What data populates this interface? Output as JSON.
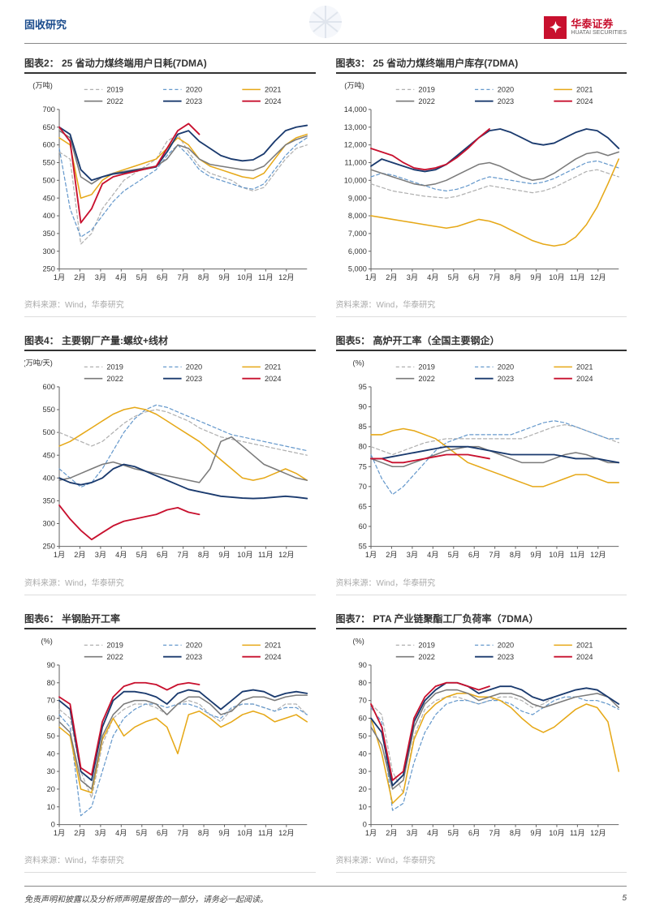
{
  "header": {
    "section": "固收研究",
    "logoCn": "华泰证券",
    "logoEn": "HUATAI SECURITIES"
  },
  "footer": {
    "disclaimer": "免责声明和披露以及分析师声明是报告的一部分，请务必一起阅读。",
    "page": "5"
  },
  "common": {
    "months": [
      "1月",
      "2月",
      "3月",
      "4月",
      "5月",
      "6月",
      "7月",
      "8月",
      "9月",
      "10月",
      "11月",
      "12月"
    ],
    "legend": [
      "2019",
      "2020",
      "2021",
      "2022",
      "2023",
      "2024"
    ],
    "colors": {
      "2019": "#b0b0b0",
      "2020": "#6699cc",
      "2021": "#e6a817",
      "2022": "#7a7a7a",
      "2023": "#1a3a6e",
      "2024": "#c8102e"
    },
    "dash": {
      "2019": "4,3",
      "2020": "4,3",
      "2021": "0",
      "2022": "0",
      "2023": "0",
      "2024": "0"
    },
    "lineWidth": {
      "2019": 1.2,
      "2020": 1.2,
      "2021": 1.5,
      "2022": 1.5,
      "2023": 1.8,
      "2024": 1.8
    },
    "source": "资料来源：Wind，华泰研究",
    "bgColor": "#ffffff",
    "axisColor": "#666",
    "tickFontSize": 9,
    "titleFontSize": 12
  },
  "charts": [
    {
      "id": "c2",
      "title": "图表2：  25 省动力煤终端用户日耗(7DMA)",
      "ylabel": "(万吨)",
      "ymin": 250,
      "ymax": 700,
      "ystep": 50,
      "series": {
        "2019": [
          580,
          560,
          320,
          350,
          420,
          460,
          500,
          520,
          540,
          560,
          610,
          630,
          580,
          540,
          520,
          510,
          500,
          480,
          470,
          480,
          520,
          560,
          590,
          600
        ],
        "2020": [
          590,
          420,
          340,
          360,
          400,
          440,
          470,
          490,
          510,
          530,
          570,
          600,
          570,
          530,
          510,
          500,
          490,
          480,
          475,
          490,
          530,
          570,
          600,
          620
        ],
        "2021": [
          620,
          600,
          450,
          460,
          500,
          520,
          530,
          540,
          550,
          560,
          590,
          620,
          600,
          560,
          540,
          530,
          520,
          510,
          505,
          520,
          560,
          600,
          620,
          630
        ],
        "2022": [
          640,
          620,
          510,
          490,
          510,
          520,
          525,
          530,
          535,
          540,
          560,
          600,
          590,
          560,
          545,
          540,
          535,
          530,
          528,
          540,
          570,
          600,
          615,
          625
        ],
        "2023": [
          650,
          630,
          530,
          500,
          510,
          518,
          522,
          528,
          532,
          538,
          580,
          630,
          640,
          610,
          590,
          570,
          560,
          555,
          558,
          575,
          610,
          640,
          650,
          655
        ],
        "2024": [
          650,
          610,
          380,
          420,
          490,
          510,
          518,
          525,
          532,
          540,
          590,
          640,
          660,
          630
        ]
      }
    },
    {
      "id": "c3",
      "title": "图表3：  25 省动力煤终端用户库存(7DMA)",
      "ylabel": "(万吨)",
      "ymin": 5000,
      "ymax": 14000,
      "ystep": 1000,
      "series": {
        "2019": [
          9800,
          9600,
          9400,
          9300,
          9200,
          9100,
          9050,
          9000,
          9100,
          9300,
          9500,
          9700,
          9600,
          9500,
          9400,
          9300,
          9400,
          9600,
          9900,
          10200,
          10500,
          10600,
          10400,
          10200
        ],
        "2020": [
          10200,
          10400,
          10300,
          10100,
          9900,
          9700,
          9500,
          9400,
          9500,
          9700,
          10000,
          10200,
          10100,
          10000,
          9900,
          9800,
          9900,
          10100,
          10400,
          10700,
          11000,
          11100,
          10900,
          10700
        ],
        "2021": [
          8000,
          7900,
          7800,
          7700,
          7600,
          7500,
          7400,
          7300,
          7400,
          7600,
          7800,
          7700,
          7500,
          7200,
          6900,
          6600,
          6400,
          6300,
          6400,
          6800,
          7500,
          8500,
          9800,
          11200
        ],
        "2022": [
          10600,
          10400,
          10200,
          10000,
          9800,
          9700,
          9800,
          10000,
          10300,
          10600,
          10900,
          11000,
          10800,
          10500,
          10200,
          10000,
          10100,
          10400,
          10800,
          11200,
          11500,
          11600,
          11400,
          11600
        ],
        "2023": [
          10800,
          11200,
          11000,
          10800,
          10600,
          10500,
          10600,
          10900,
          11400,
          11900,
          12400,
          12800,
          12900,
          12700,
          12400,
          12100,
          12000,
          12100,
          12400,
          12700,
          12900,
          12800,
          12400,
          11800
        ],
        "2024": [
          11800,
          11600,
          11400,
          11000,
          10700,
          10600,
          10700,
          10900,
          11300,
          11800,
          12400,
          12900
        ]
      }
    },
    {
      "id": "c4",
      "title": "图表4：  主要钢厂产量:螺纹+线材",
      "ylabel": "(万吨/天)",
      "ymin": 250,
      "ymax": 600,
      "ystep": 50,
      "series": {
        "2019": [
          500,
          490,
          480,
          470,
          480,
          500,
          520,
          535,
          545,
          550,
          545,
          535,
          525,
          510,
          500,
          490,
          485,
          480,
          475,
          470,
          465,
          460,
          455,
          450
        ],
        "2020": [
          420,
          400,
          380,
          390,
          420,
          460,
          500,
          530,
          550,
          560,
          555,
          545,
          535,
          525,
          515,
          505,
          495,
          490,
          485,
          480,
          475,
          470,
          465,
          460
        ],
        "2021": [
          470,
          480,
          495,
          510,
          525,
          540,
          550,
          555,
          550,
          540,
          525,
          510,
          495,
          480,
          460,
          440,
          420,
          400,
          395,
          400,
          410,
          420,
          410,
          395
        ],
        "2022": [
          395,
          400,
          410,
          420,
          430,
          435,
          428,
          420,
          415,
          410,
          405,
          400,
          395,
          390,
          420,
          480,
          490,
          470,
          450,
          430,
          420,
          410,
          400,
          395
        ],
        "2023": [
          400,
          390,
          385,
          390,
          400,
          420,
          430,
          425,
          415,
          405,
          395,
          385,
          375,
          370,
          365,
          360,
          358,
          356,
          355,
          356,
          358,
          360,
          358,
          355
        ],
        "2024": [
          340,
          310,
          285,
          265,
          280,
          295,
          305,
          310,
          315,
          320,
          330,
          335,
          325,
          320
        ]
      }
    },
    {
      "id": "c5",
      "title": "图表5：  高炉开工率（全国主要钢企）",
      "ylabel": "(%)",
      "ymin": 55,
      "ymax": 95,
      "ystep": 5,
      "series": {
        "2019": [
          80,
          79,
          78,
          79,
          80,
          81,
          81.5,
          82,
          82,
          82,
          82,
          82,
          82,
          82,
          82,
          83,
          84,
          85,
          85.5,
          85,
          84,
          83,
          82,
          81
        ],
        "2020": [
          78,
          72,
          68,
          70,
          73,
          76,
          79,
          81,
          82,
          83,
          83,
          83,
          83,
          83,
          84,
          85,
          86,
          86.5,
          86,
          85,
          84,
          83,
          82,
          82
        ],
        "2021": [
          83,
          83,
          84,
          84.5,
          84,
          83,
          82,
          80,
          78,
          76,
          75,
          74,
          73,
          72,
          71,
          70,
          70,
          71,
          72,
          73,
          73,
          72,
          71,
          71
        ],
        "2022": [
          77,
          76,
          75,
          75,
          76,
          77,
          78,
          79,
          79.5,
          80,
          80,
          79,
          78,
          77,
          76,
          76,
          76,
          77,
          78,
          78.5,
          78,
          77,
          76,
          76
        ],
        "2023": [
          77,
          77,
          77.5,
          78,
          78.5,
          79,
          79.5,
          80,
          80,
          80,
          79.5,
          79,
          78.5,
          78,
          78,
          78,
          78,
          78,
          77.5,
          77,
          77,
          77,
          76.5,
          76
        ],
        "2024": [
          77,
          77,
          76,
          76,
          76.5,
          77,
          77.5,
          78,
          78,
          78,
          77.5,
          77
        ]
      }
    },
    {
      "id": "c6",
      "title": "图表6：  半钢胎开工率",
      "ylabel": "(%)",
      "ymin": 0,
      "ymax": 90,
      "ystep": 10,
      "series": {
        "2019": [
          65,
          60,
          30,
          15,
          45,
          60,
          65,
          68,
          68,
          66,
          62,
          68,
          70,
          68,
          62,
          58,
          65,
          68,
          68,
          66,
          64,
          68,
          68,
          62
        ],
        "2020": [
          62,
          55,
          5,
          10,
          30,
          50,
          60,
          65,
          68,
          68,
          66,
          68,
          68,
          66,
          62,
          60,
          66,
          68,
          68,
          66,
          64,
          66,
          66,
          62
        ],
        "2021": [
          55,
          50,
          20,
          18,
          48,
          60,
          50,
          55,
          58,
          60,
          55,
          40,
          62,
          64,
          60,
          55,
          58,
          62,
          64,
          62,
          58,
          60,
          62,
          58
        ],
        "2022": [
          58,
          52,
          25,
          20,
          50,
          62,
          68,
          70,
          70,
          68,
          62,
          68,
          72,
          72,
          68,
          62,
          64,
          70,
          72,
          72,
          70,
          72,
          73,
          73
        ],
        "2023": [
          70,
          65,
          30,
          25,
          55,
          70,
          75,
          75,
          74,
          72,
          68,
          74,
          76,
          75,
          70,
          65,
          70,
          75,
          76,
          75,
          72,
          74,
          75,
          74
        ],
        "2024": [
          72,
          68,
          32,
          28,
          58,
          72,
          78,
          80,
          80,
          79,
          76,
          79,
          80,
          79
        ]
      }
    },
    {
      "id": "c7",
      "title": "图表7：  PTA 产业链聚酯工厂负荷率（7DMA）",
      "ylabel": "(%)",
      "ymin": 0,
      "ymax": 90,
      "ystep": 10,
      "series": {
        "2019": [
          68,
          62,
          30,
          18,
          50,
          65,
          70,
          72,
          72,
          70,
          68,
          70,
          72,
          72,
          70,
          66,
          68,
          72,
          74,
          76,
          77,
          76,
          72,
          68
        ],
        "2020": [
          66,
          58,
          8,
          12,
          35,
          52,
          62,
          68,
          70,
          70,
          68,
          70,
          70,
          68,
          64,
          62,
          66,
          70,
          72,
          72,
          70,
          70,
          68,
          65
        ],
        "2021": [
          60,
          40,
          12,
          18,
          48,
          62,
          68,
          72,
          74,
          74,
          72,
          72,
          70,
          66,
          60,
          55,
          52,
          55,
          60,
          65,
          68,
          66,
          58,
          30
        ],
        "2022": [
          55,
          45,
          20,
          25,
          55,
          68,
          74,
          76,
          76,
          74,
          70,
          72,
          74,
          74,
          72,
          68,
          66,
          68,
          70,
          72,
          73,
          74,
          72,
          66
        ],
        "2023": [
          60,
          52,
          22,
          28,
          58,
          70,
          76,
          80,
          80,
          78,
          74,
          76,
          78,
          78,
          76,
          72,
          70,
          72,
          74,
          76,
          77,
          76,
          72,
          68
        ],
        "2024": [
          68,
          55,
          25,
          30,
          60,
          72,
          78,
          80,
          80,
          78,
          76,
          78
        ]
      }
    }
  ]
}
